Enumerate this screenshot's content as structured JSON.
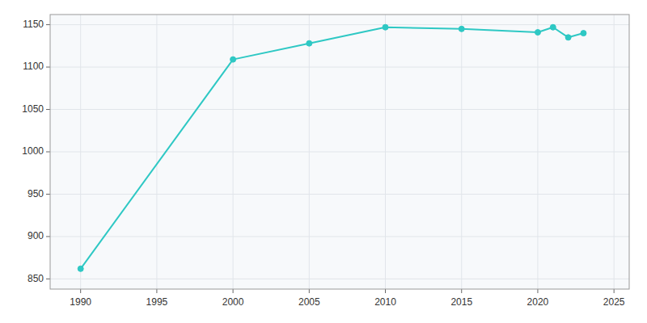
{
  "chart_data": {
    "type": "line",
    "x": [
      1990,
      2000,
      2005,
      2010,
      2015,
      2020,
      2021,
      2022,
      2023
    ],
    "values": [
      862,
      1109,
      1128,
      1147,
      1145,
      1141,
      1147,
      1135,
      1140
    ],
    "color": "#2ec8c4",
    "marker": "circle",
    "xlim": [
      1988,
      2026
    ],
    "ylim": [
      838,
      1162
    ],
    "xticks": [
      1990,
      1995,
      2000,
      2005,
      2010,
      2015,
      2020,
      2025
    ],
    "yticks": [
      850,
      900,
      950,
      1000,
      1050,
      1100,
      1150
    ],
    "grid": true
  }
}
